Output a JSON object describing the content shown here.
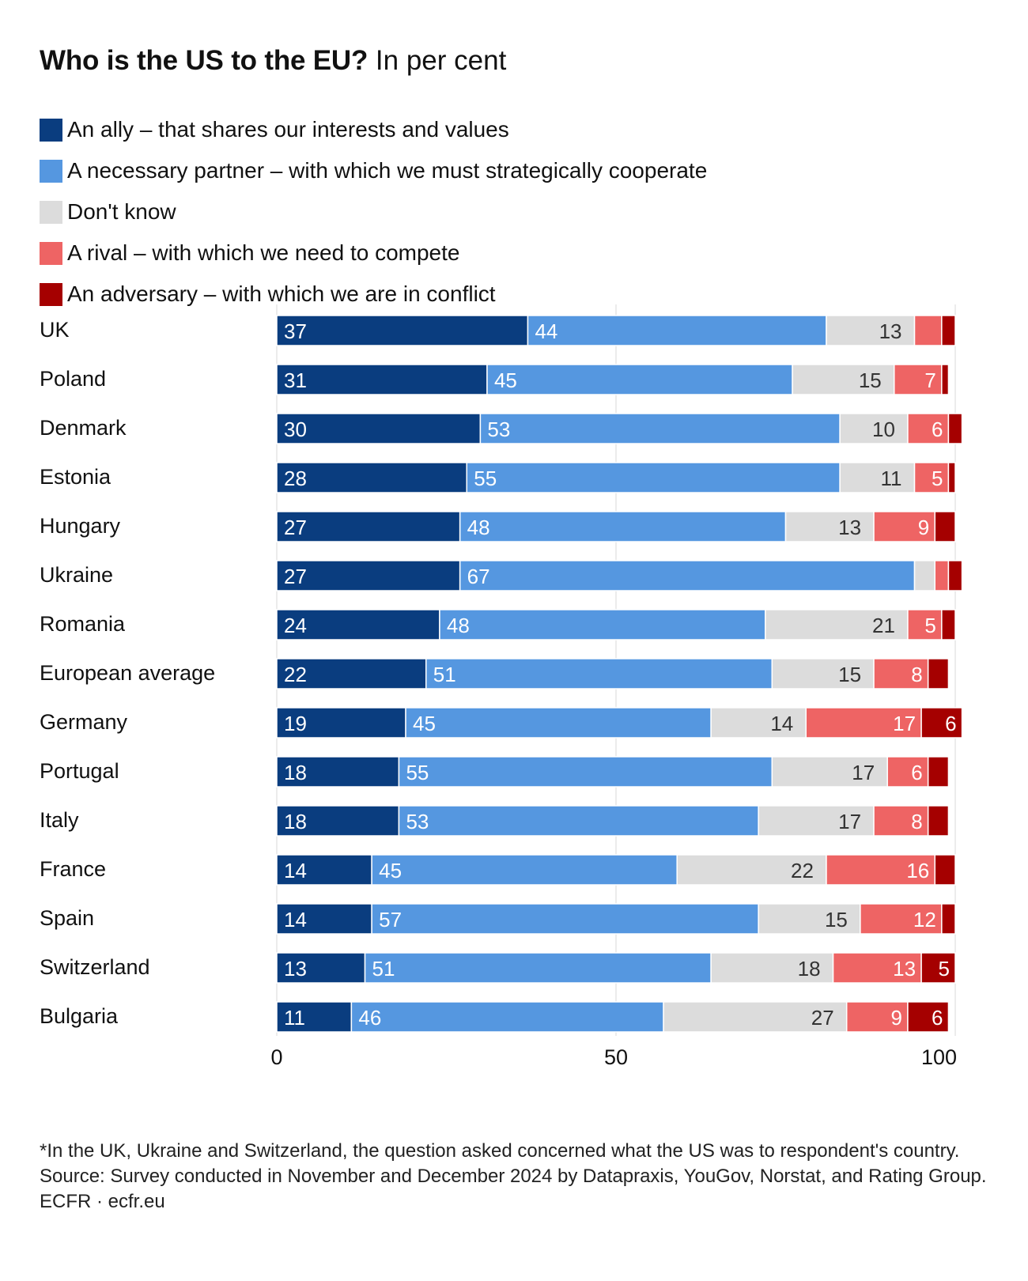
{
  "title": {
    "main": "Who is the US to the EU?",
    "sub": "In per cent"
  },
  "legend": [
    {
      "label": "An ally – that shares our interests and values",
      "color": "#0a3d7f"
    },
    {
      "label": "A necessary partner – with which we must strategically cooperate",
      "color": "#5597e0"
    },
    {
      "label": "Don't know",
      "color": "#dcdcdc"
    },
    {
      "label": "A rival – with which we need to compete",
      "color": "#ee6464"
    },
    {
      "label": "An adversary – with which we are in conflict",
      "color": "#a50000"
    }
  ],
  "chart_data": {
    "type": "bar",
    "orientation": "horizontal",
    "stacked": true,
    "title": "Who is the US to the EU?",
    "subtitle": "In per cent",
    "xlim": [
      0,
      100
    ],
    "xticks": [
      0,
      50,
      100
    ],
    "grid": true,
    "legend_position": "top",
    "categories": [
      "UK",
      "Poland",
      "Denmark",
      "Estonia",
      "Hungary",
      "Ukraine",
      "Romania",
      "European average",
      "Germany",
      "Portugal",
      "Italy",
      "France",
      "Spain",
      "Switzerland",
      "Bulgaria"
    ],
    "series": [
      {
        "name": "An ally – that shares our interests and values",
        "color": "#0a3d7f",
        "values": [
          37,
          31,
          30,
          28,
          27,
          27,
          24,
          22,
          19,
          18,
          18,
          14,
          14,
          13,
          11
        ]
      },
      {
        "name": "A necessary partner – with which we must strategically cooperate",
        "color": "#5597e0",
        "values": [
          44,
          45,
          53,
          55,
          48,
          67,
          48,
          51,
          45,
          55,
          53,
          45,
          57,
          51,
          46
        ]
      },
      {
        "name": "Don't know",
        "color": "#dcdcdc",
        "values": [
          13,
          15,
          10,
          11,
          13,
          3,
          21,
          15,
          14,
          17,
          17,
          22,
          15,
          18,
          27
        ]
      },
      {
        "name": "A rival – with which we need to compete",
        "color": "#ee6464",
        "values": [
          4,
          7,
          6,
          5,
          9,
          2,
          5,
          8,
          17,
          6,
          8,
          16,
          12,
          13,
          9
        ]
      },
      {
        "name": "An adversary – with which we are in conflict",
        "color": "#a50000",
        "values": [
          2,
          1,
          2,
          1,
          3,
          2,
          2,
          3,
          6,
          3,
          3,
          3,
          2,
          5,
          6
        ]
      }
    ],
    "data_labels": {
      "shown": [
        [
          37,
          44,
          13,
          null,
          null
        ],
        [
          31,
          45,
          15,
          7,
          null
        ],
        [
          30,
          53,
          10,
          6,
          null
        ],
        [
          28,
          55,
          11,
          5,
          null
        ],
        [
          27,
          48,
          13,
          9,
          null
        ],
        [
          27,
          67,
          null,
          null,
          null
        ],
        [
          24,
          48,
          21,
          5,
          null
        ],
        [
          22,
          51,
          15,
          8,
          null
        ],
        [
          19,
          45,
          14,
          17,
          6
        ],
        [
          18,
          55,
          17,
          6,
          null
        ],
        [
          18,
          53,
          17,
          8,
          null
        ],
        [
          14,
          45,
          22,
          16,
          null
        ],
        [
          14,
          57,
          15,
          12,
          null
        ],
        [
          13,
          51,
          18,
          13,
          5
        ],
        [
          11,
          46,
          27,
          9,
          6
        ]
      ]
    }
  },
  "footnotes": {
    "note": "*In the UK, Ukraine and Switzerland, the question asked concerned what the US was to respondent's country.",
    "source": "Source: Survey conducted in November and December 2024 by Datapraxis, YouGov, Norstat, and Rating Group.",
    "credit": "ECFR · ecfr.eu"
  }
}
